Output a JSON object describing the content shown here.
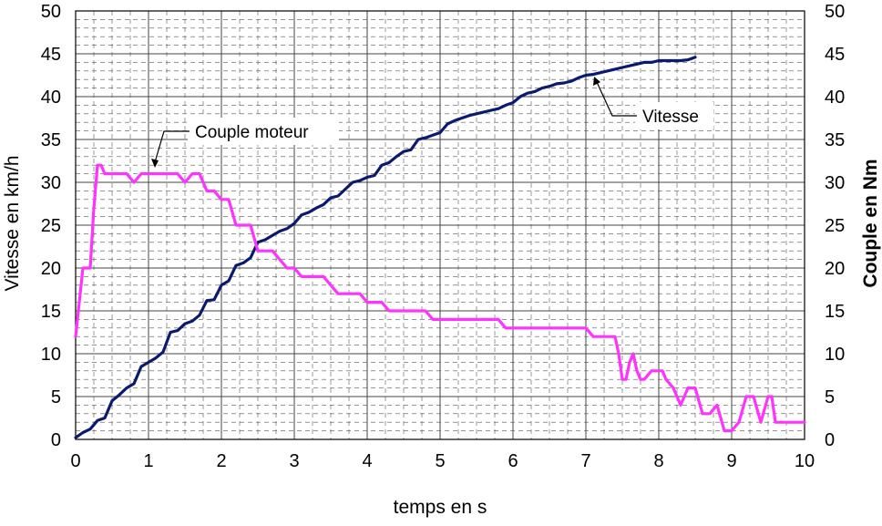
{
  "chart_data": {
    "type": "line",
    "xlabel": "temps en s",
    "ylabel": "Vitesse en km/h",
    "y2label": "Couple en Nm",
    "xlim": [
      0,
      10
    ],
    "ylim": [
      0,
      50
    ],
    "y2lim": [
      0,
      50
    ],
    "x_ticks": [
      0,
      1,
      2,
      3,
      4,
      5,
      6,
      7,
      8,
      9,
      10
    ],
    "y_ticks": [
      0,
      5,
      10,
      15,
      20,
      25,
      30,
      35,
      40,
      45,
      50
    ],
    "y2_ticks": [
      0,
      5,
      10,
      15,
      20,
      25,
      30,
      35,
      40,
      45,
      50
    ],
    "grid": true,
    "minor_grid": "dashed",
    "series": [
      {
        "name": "Vitesse",
        "color": "#0a1a6e",
        "axis": "left",
        "x": [
          0,
          0.1,
          0.2,
          0.3,
          0.4,
          0.5,
          0.6,
          0.7,
          0.8,
          0.9,
          1.0,
          1.1,
          1.2,
          1.3,
          1.4,
          1.5,
          1.6,
          1.7,
          1.8,
          1.9,
          2.0,
          2.1,
          2.2,
          2.3,
          2.4,
          2.5,
          2.6,
          2.7,
          2.8,
          2.9,
          3.0,
          3.1,
          3.2,
          3.3,
          3.4,
          3.5,
          3.6,
          3.7,
          3.8,
          3.9,
          4.0,
          4.1,
          4.2,
          4.3,
          4.4,
          4.5,
          4.6,
          4.7,
          4.8,
          4.9,
          5.0,
          5.1,
          5.2,
          5.3,
          5.4,
          5.5,
          5.6,
          5.7,
          5.8,
          5.9,
          6.0,
          6.1,
          6.2,
          6.3,
          6.4,
          6.5,
          6.6,
          6.7,
          6.8,
          6.9,
          7.0,
          7.1,
          7.2,
          7.3,
          7.4,
          7.5,
          7.6,
          7.7,
          7.8,
          7.9,
          8.0,
          8.1,
          8.2,
          8.3,
          8.4,
          8.5
        ],
        "values": [
          0.2,
          0.8,
          1.2,
          2.2,
          2.5,
          4.5,
          5.2,
          6.0,
          6.5,
          8.5,
          9.0,
          9.5,
          10.2,
          12.5,
          12.7,
          13.5,
          13.8,
          14.5,
          16.2,
          16.3,
          18.0,
          18.5,
          20.3,
          20.6,
          21.2,
          23.0,
          23.3,
          23.8,
          24.3,
          24.6,
          25.2,
          26.2,
          26.5,
          27.0,
          27.4,
          28.2,
          28.4,
          29.2,
          30.0,
          30.2,
          30.6,
          30.8,
          32.0,
          32.3,
          33.0,
          33.6,
          33.8,
          35.0,
          35.2,
          35.5,
          35.8,
          36.8,
          37.2,
          37.5,
          37.8,
          38.0,
          38.2,
          38.4,
          38.6,
          39.0,
          39.3,
          40.0,
          40.4,
          40.6,
          41.0,
          41.2,
          41.5,
          41.6,
          41.8,
          42.2,
          42.5,
          42.6,
          42.8,
          43.0,
          43.2,
          43.4,
          43.6,
          43.8,
          44.0,
          44.0,
          44.2,
          44.2,
          44.2,
          44.2,
          44.3,
          44.6
        ]
      },
      {
        "name": "Couple moteur",
        "color": "#ff33ff",
        "axis": "right",
        "x": [
          0,
          0.05,
          0.1,
          0.15,
          0.2,
          0.25,
          0.3,
          0.35,
          0.4,
          0.5,
          0.6,
          0.7,
          0.8,
          0.9,
          1.0,
          1.1,
          1.2,
          1.3,
          1.4,
          1.5,
          1.6,
          1.7,
          1.8,
          1.9,
          2.0,
          2.1,
          2.2,
          2.3,
          2.4,
          2.5,
          2.6,
          2.7,
          2.8,
          2.9,
          3.0,
          3.1,
          3.2,
          3.3,
          3.4,
          3.5,
          3.6,
          3.7,
          3.8,
          3.9,
          4.0,
          4.1,
          4.2,
          4.3,
          4.4,
          4.5,
          4.6,
          4.7,
          4.8,
          4.9,
          5.0,
          5.2,
          5.4,
          5.6,
          5.8,
          5.9,
          6.0,
          6.2,
          6.4,
          6.6,
          6.8,
          7.0,
          7.1,
          7.2,
          7.3,
          7.4,
          7.45,
          7.5,
          7.55,
          7.6,
          7.65,
          7.7,
          7.75,
          7.8,
          7.9,
          8.0,
          8.05,
          8.1,
          8.2,
          8.3,
          8.4,
          8.5,
          8.6,
          8.7,
          8.8,
          8.9,
          9.0,
          9.1,
          9.2,
          9.3,
          9.4,
          9.5,
          9.55,
          9.6,
          9.7,
          9.8,
          9.9,
          10.0
        ],
        "values": [
          12,
          16,
          20,
          20,
          20,
          27,
          32,
          32,
          31,
          31,
          31,
          31,
          30,
          31,
          31,
          31,
          31,
          31,
          31,
          30,
          31,
          31,
          29,
          29,
          28,
          28,
          25,
          25,
          25,
          22,
          22,
          22,
          21,
          20,
          20,
          19,
          19,
          19,
          19,
          18,
          17,
          17,
          17,
          17,
          16,
          16,
          16,
          15,
          15,
          15,
          15,
          15,
          15,
          14,
          14,
          14,
          14,
          14,
          14,
          13,
          13,
          13,
          13,
          13,
          13,
          13,
          12,
          12,
          12,
          12,
          10,
          7,
          7,
          9,
          10,
          8,
          7,
          7,
          8,
          8,
          8,
          7,
          6,
          4,
          6,
          6,
          3,
          3,
          4,
          1,
          1,
          2,
          5,
          5,
          2,
          5,
          5,
          2,
          2,
          2,
          2,
          2
        ]
      }
    ],
    "annotations": [
      {
        "text": "Couple moteur",
        "target_series": "Couple moteur",
        "target_x": 1.1,
        "target_y": 31
      },
      {
        "text": "Vitesse",
        "target_series": "Vitesse",
        "target_x": 7.2,
        "target_y": 42.7
      }
    ]
  }
}
